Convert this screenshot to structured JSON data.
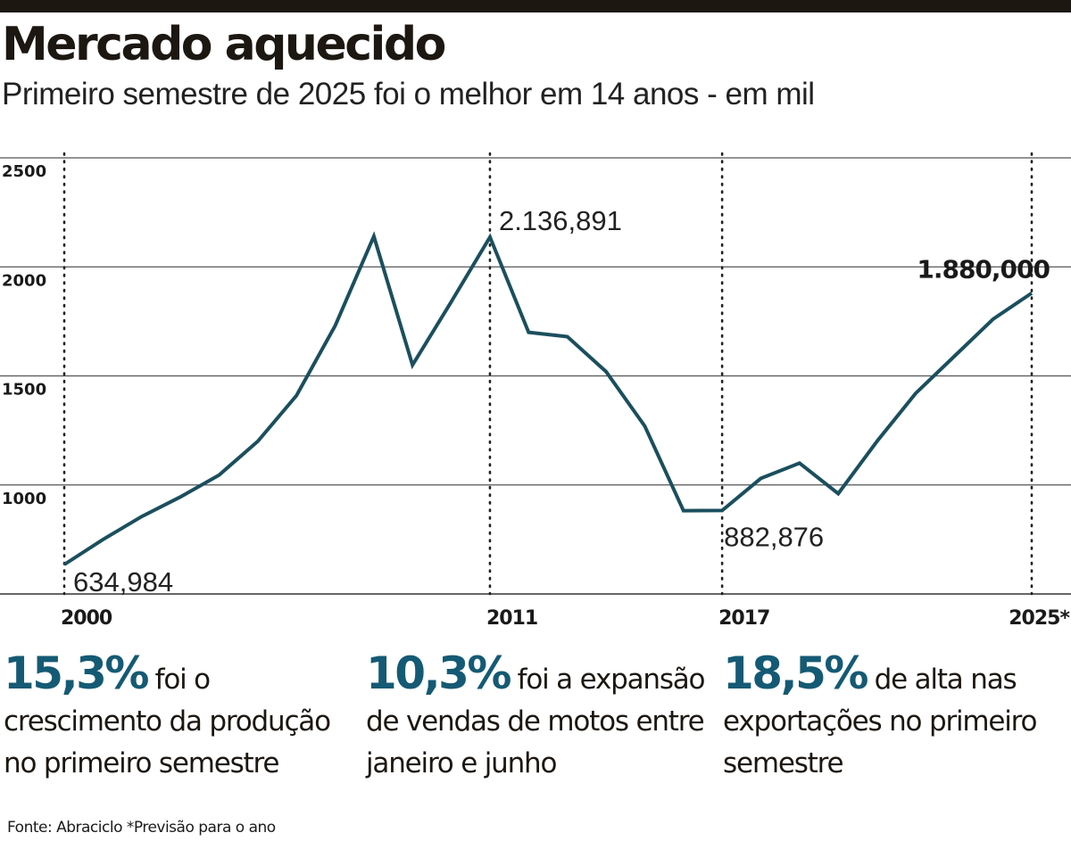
{
  "header": {
    "title": "Mercado aquecido",
    "subtitle": "Primeiro semestre de 2025 foi o melhor em 14 anos - em mil"
  },
  "chart_data": {
    "type": "line",
    "title": "Mercado aquecido",
    "subtitle": "Primeiro semestre de 2025 foi o melhor em 14 anos - em mil",
    "xlabel": "",
    "ylabel": "",
    "ylim": [
      500,
      2500
    ],
    "yticks": [
      1000,
      1500,
      2000,
      2500
    ],
    "x": [
      2000,
      2001,
      2002,
      2003,
      2004,
      2005,
      2006,
      2007,
      2008,
      2009,
      2010,
      2011,
      2012,
      2013,
      2014,
      2015,
      2016,
      2017,
      2018,
      2019,
      2020,
      2021,
      2022,
      2023,
      2024,
      2025
    ],
    "xticks": [
      {
        "value": 2000,
        "label": "2000"
      },
      {
        "value": 2011,
        "label": "2011"
      },
      {
        "value": 2017,
        "label": "2017"
      },
      {
        "value": 2025,
        "label": "2025*"
      }
    ],
    "series": [
      {
        "name": "Produção (mil)",
        "color": "#1b4f5e",
        "values": [
          634.984,
          750,
          855,
          945,
          1045,
          1200,
          1410,
          1730,
          2140,
          1550,
          1840,
          2136.891,
          1700,
          1680,
          1520,
          1270,
          882,
          882.876,
          1030,
          1100,
          960,
          1200,
          1420,
          1590,
          1760,
          1880.0
        ]
      }
    ],
    "annotations": [
      {
        "x": 2000,
        "value": 634.984,
        "label": "634,984",
        "bold": false
      },
      {
        "x": 2011,
        "value": 2136.891,
        "label": "2.136,891",
        "bold": false
      },
      {
        "x": 2017,
        "value": 882.876,
        "label": "882,876",
        "bold": false
      },
      {
        "x": 2025,
        "value": 1880.0,
        "label": "1.880,000",
        "bold": true
      }
    ]
  },
  "stats": [
    {
      "value": "15,3%",
      "text": " foi o crescimento da produção no primeiro semestre"
    },
    {
      "value": "10,3%",
      "text": " foi a expansão de vendas de motos entre janeiro e junho"
    },
    {
      "value": "18,5%",
      "text": " de alta nas exportações no primeiro semestre"
    }
  ],
  "footer": {
    "source": "Fonte: Abraciclo *Previsão para o ano"
  },
  "colors": {
    "line": "#1b4f5e",
    "accent": "#155a74",
    "top_bar": "#1c1711"
  }
}
